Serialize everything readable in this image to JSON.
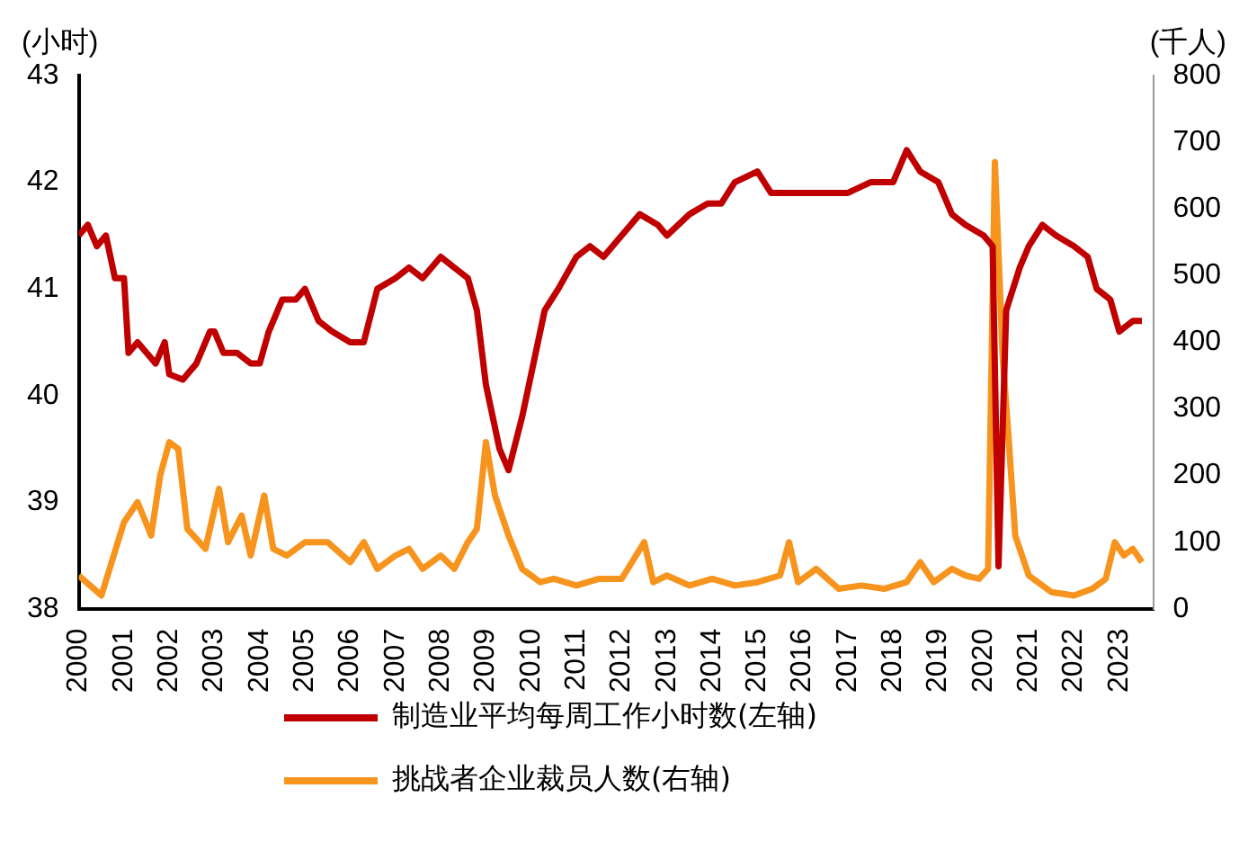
{
  "chart_data": {
    "type": "line",
    "ylabel": "(小时)",
    "y2label": "(千人)",
    "xlim": [
      2000,
      2023.75
    ],
    "xticks": [
      2000,
      2001,
      2002,
      2003,
      2004,
      2005,
      2006,
      2007,
      2008,
      2009,
      2010,
      2011,
      2012,
      2013,
      2014,
      2015,
      2016,
      2017,
      2018,
      2019,
      2020,
      2021,
      2022,
      2023
    ],
    "ylim": [
      38,
      43
    ],
    "yticks": [
      38,
      39,
      40,
      41,
      42,
      43
    ],
    "y2lim": [
      0,
      800
    ],
    "y2ticks": [
      0,
      100,
      200,
      300,
      400,
      500,
      600,
      700,
      800
    ],
    "grid": false,
    "legend": "bottom",
    "marker": "none",
    "line_style": "solid",
    "series": [
      {
        "name": "制造业平均每周工作小时数(左轴)",
        "color": "#c00000",
        "x": [
          2000.0,
          2000.2,
          2000.4,
          2000.6,
          2000.8,
          2001.0,
          2001.1,
          2001.3,
          2001.5,
          2001.7,
          2001.9,
          2002.0,
          2002.3,
          2002.6,
          2002.9,
          2003.0,
          2003.2,
          2003.5,
          2003.8,
          2004.0,
          2004.2,
          2004.5,
          2004.8,
          2005.0,
          2005.3,
          2005.6,
          2006.0,
          2006.3,
          2006.6,
          2007.0,
          2007.3,
          2007.6,
          2008.0,
          2008.3,
          2008.6,
          2008.8,
          2009.0,
          2009.3,
          2009.5,
          2009.8,
          2010.0,
          2010.3,
          2010.6,
          2011.0,
          2011.3,
          2011.6,
          2012.0,
          2012.4,
          2012.8,
          2013.0,
          2013.5,
          2013.9,
          2014.2,
          2014.5,
          2015.0,
          2015.3,
          2015.6,
          2016.0,
          2016.5,
          2017.0,
          2017.5,
          2018.0,
          2018.3,
          2018.6,
          2019.0,
          2019.3,
          2019.6,
          2020.0,
          2020.2,
          2020.33,
          2020.5,
          2020.8,
          2021.0,
          2021.3,
          2021.6,
          2022.0,
          2022.3,
          2022.5,
          2022.8,
          2023.0,
          2023.3,
          2023.5
        ],
        "values": [
          41.5,
          41.6,
          41.4,
          41.5,
          41.1,
          41.1,
          40.4,
          40.5,
          40.4,
          40.3,
          40.5,
          40.2,
          40.15,
          40.3,
          40.6,
          40.6,
          40.4,
          40.4,
          40.3,
          40.3,
          40.6,
          40.9,
          40.9,
          41.0,
          40.7,
          40.6,
          40.5,
          40.5,
          41.0,
          41.1,
          41.2,
          41.1,
          41.3,
          41.2,
          41.1,
          40.8,
          40.1,
          39.5,
          39.3,
          39.8,
          40.2,
          40.8,
          41.0,
          41.3,
          41.4,
          41.3,
          41.5,
          41.7,
          41.6,
          41.5,
          41.7,
          41.8,
          41.8,
          42.0,
          42.1,
          41.9,
          41.9,
          41.9,
          41.9,
          41.9,
          42.0,
          42.0,
          42.3,
          42.1,
          42.0,
          41.7,
          41.6,
          41.5,
          41.4,
          38.4,
          40.8,
          41.2,
          41.4,
          41.6,
          41.5,
          41.4,
          41.3,
          41.0,
          40.9,
          40.6,
          40.7,
          40.7
        ]
      },
      {
        "name": "挑战者企业裁员人数(右轴)",
        "color": "#f7941d",
        "axis": "y2",
        "x": [
          2000.0,
          2000.5,
          2001.0,
          2001.3,
          2001.6,
          2001.8,
          2002.0,
          2002.2,
          2002.4,
          2002.8,
          2003.1,
          2003.3,
          2003.6,
          2003.8,
          2004.1,
          2004.3,
          2004.6,
          2005.0,
          2005.5,
          2006.0,
          2006.3,
          2006.6,
          2007.0,
          2007.3,
          2007.6,
          2008.0,
          2008.3,
          2008.6,
          2008.8,
          2009.0,
          2009.2,
          2009.5,
          2009.8,
          2010.2,
          2010.5,
          2011.0,
          2011.5,
          2012.0,
          2012.5,
          2012.7,
          2013.0,
          2013.5,
          2014.0,
          2014.5,
          2015.0,
          2015.5,
          2015.7,
          2015.9,
          2016.3,
          2016.8,
          2017.3,
          2017.8,
          2018.3,
          2018.6,
          2018.9,
          2019.3,
          2019.6,
          2019.9,
          2020.1,
          2020.25,
          2020.42,
          2020.55,
          2020.7,
          2021.0,
          2021.5,
          2022.0,
          2022.4,
          2022.7,
          2022.9,
          2023.1,
          2023.3,
          2023.5
        ],
        "values": [
          50,
          20,
          130,
          160,
          110,
          200,
          250,
          240,
          120,
          90,
          180,
          100,
          140,
          80,
          170,
          90,
          80,
          100,
          100,
          70,
          100,
          60,
          80,
          90,
          60,
          80,
          60,
          100,
          120,
          250,
          170,
          110,
          60,
          40,
          45,
          35,
          45,
          45,
          100,
          40,
          50,
          35,
          45,
          35,
          40,
          50,
          100,
          40,
          60,
          30,
          35,
          30,
          40,
          70,
          40,
          60,
          50,
          45,
          60,
          670,
          380,
          260,
          110,
          50,
          25,
          20,
          30,
          45,
          100,
          80,
          90,
          70
        ]
      }
    ]
  }
}
